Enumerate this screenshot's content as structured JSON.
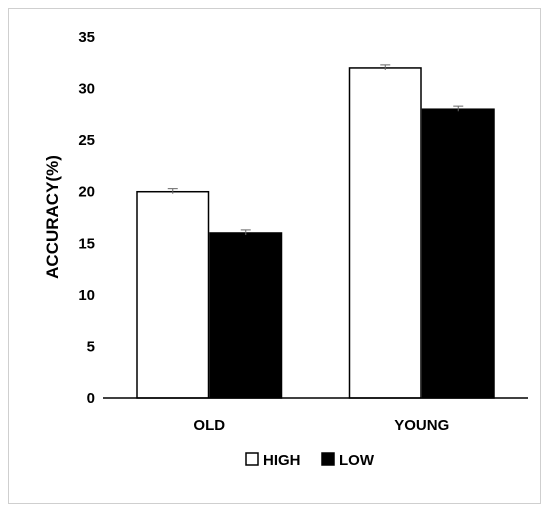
{
  "chart_data": {
    "type": "bar",
    "title": "",
    "xlabel": "",
    "ylabel": "ACCURACY(%)",
    "ylim": [
      0,
      35
    ],
    "yticks": [
      0,
      5,
      10,
      15,
      20,
      25,
      30,
      35
    ],
    "categories": [
      "OLD",
      "YOUNG"
    ],
    "series": [
      {
        "name": "HIGH",
        "values": [
          20,
          32
        ],
        "error": [
          0.2,
          0.2
        ],
        "fill": "#ffffff",
        "stroke": "#000000"
      },
      {
        "name": "LOW",
        "values": [
          16,
          28
        ],
        "error": [
          0.2,
          0.2
        ],
        "fill": "#000000",
        "stroke": "#000000"
      }
    ],
    "error_bar_color": "#666666",
    "grid": false,
    "legend_position": "bottom"
  }
}
